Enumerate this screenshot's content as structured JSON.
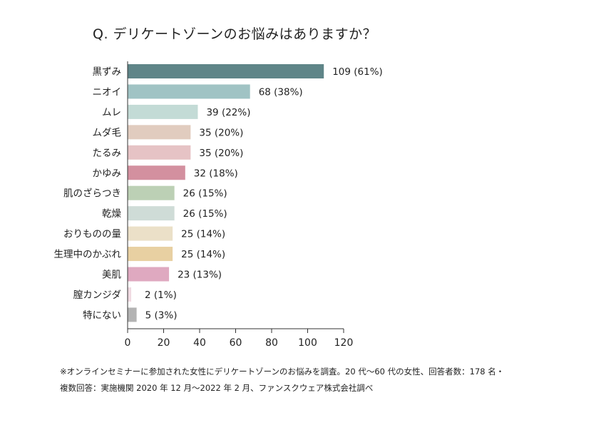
{
  "chart_data": {
    "type": "bar",
    "orientation": "horizontal",
    "title": "Q. デリケートゾーンのお悩みはありますか？",
    "xlabel": "",
    "ylabel": "",
    "xlim": [
      0,
      120
    ],
    "x_ticks": [
      0,
      20,
      40,
      60,
      80,
      100,
      120
    ],
    "grid": false,
    "categories": [
      "黒ずみ",
      "ニオイ",
      "ムレ",
      "ムダ毛",
      "たるみ",
      "かゆみ",
      "肌のざらつき",
      "乾燥",
      "おりものの量",
      "生理中のかぶれ",
      "美肌",
      "膣カンジダ",
      "特にない"
    ],
    "values": [
      109,
      68,
      39,
      35,
      35,
      32,
      26,
      26,
      25,
      25,
      23,
      2,
      5
    ],
    "data_labels": [
      "109 (61%)",
      "68 (38%)",
      "39 (22%)",
      "35 (20%)",
      "35 (20%)",
      "32 (18%)",
      "26 (15%)",
      "26 (15%)",
      "25 (14%)",
      "25 (14%)",
      "23 (13%)",
      "2 (1%)",
      "5 (3%)"
    ],
    "colors": [
      "#5f8588",
      "#a0c3c4",
      "#c3dbd6",
      "#e1ccbf",
      "#e6c3c5",
      "#d3909f",
      "#bcd0b5",
      "#cfdcd7",
      "#ebe0c8",
      "#e8d0a2",
      "#dfa9c0",
      "#f1dbe3",
      "#b3b3b3"
    ]
  },
  "footnote": {
    "line1": "※オンラインセミナーに参加された女性にデリケートゾーンのお悩みを調査。20 代〜60 代の女性、回答者数：178 名・",
    "line2": "複数回答：実施機関 2020 年 12 月〜2022 年 2 月、ファンスクウェア株式会社調べ"
  }
}
